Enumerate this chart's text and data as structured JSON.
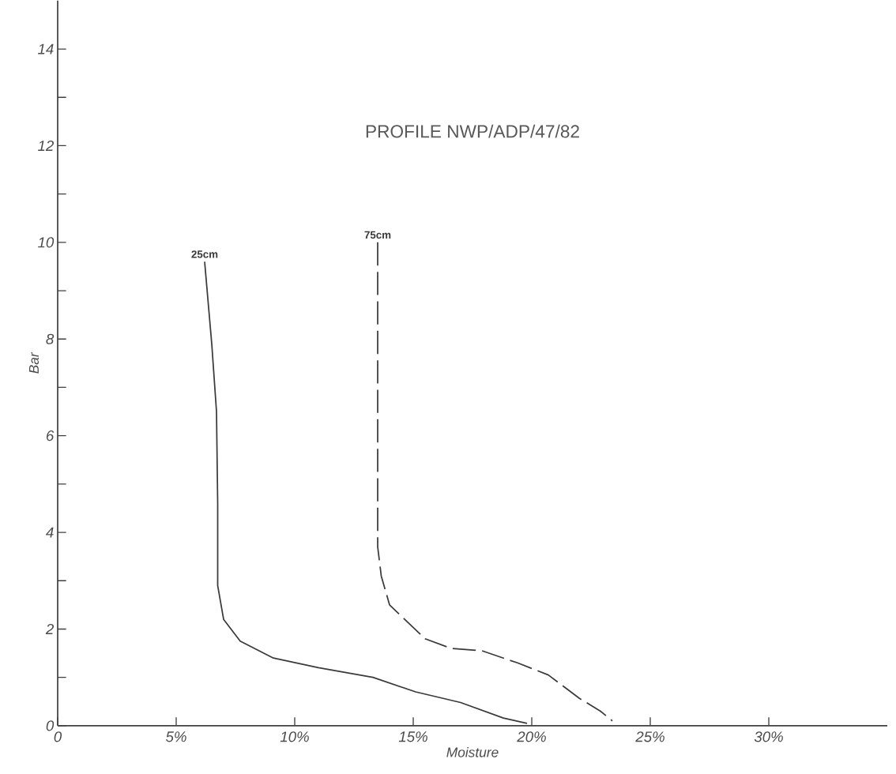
{
  "chart_data": {
    "type": "line",
    "title": "PROFILE      NWP/ADP/47/82",
    "xlabel": "Moisture",
    "ylabel": "Bar",
    "xlim": [
      0,
      35
    ],
    "ylim": [
      0,
      15
    ],
    "xticks": [
      0,
      {
        "value": 5,
        "label": "5%"
      },
      {
        "value": 10,
        "label": "10%"
      },
      {
        "value": 15,
        "label": "15%"
      },
      {
        "value": 20,
        "label": "20%"
      },
      {
        "value": 25,
        "label": "25%"
      },
      {
        "value": 30,
        "label": "30%"
      }
    ],
    "yticks": [
      0,
      {
        "value": 1,
        "label": null
      },
      2,
      {
        "value": 3,
        "label": null
      },
      4,
      {
        "value": 5,
        "label": null
      },
      6,
      {
        "value": 7,
        "label": null
      },
      8,
      {
        "value": 9,
        "label": null
      },
      10,
      {
        "value": 11,
        "label": null
      },
      12,
      {
        "value": 13,
        "label": null
      },
      14
    ],
    "marker": "none",
    "series": [
      {
        "name": "25cm",
        "color": "#3a3a3a",
        "line_style": "solid",
        "x": [
          6.2,
          6.5,
          6.7,
          6.75,
          6.75,
          7.0,
          7.7,
          9.1,
          11.0,
          13.3,
          15.1,
          17.0,
          18.8,
          19.8
        ],
        "values": [
          9.6,
          7.9,
          6.5,
          4.6,
          2.9,
          2.2,
          1.75,
          1.4,
          1.2,
          1.0,
          0.7,
          0.48,
          0.16,
          0.05
        ]
      },
      {
        "name": "75cm",
        "color": "#3a3a3a",
        "line_style": "dashed",
        "x": [
          13.5,
          13.5,
          13.65,
          14.0,
          15.5,
          16.6,
          17.9,
          19.4,
          20.7,
          22.0,
          22.9,
          23.4
        ],
        "values": [
          10.0,
          3.7,
          3.1,
          2.5,
          1.8,
          1.6,
          1.55,
          1.3,
          1.05,
          0.57,
          0.3,
          0.1
        ]
      }
    ]
  }
}
